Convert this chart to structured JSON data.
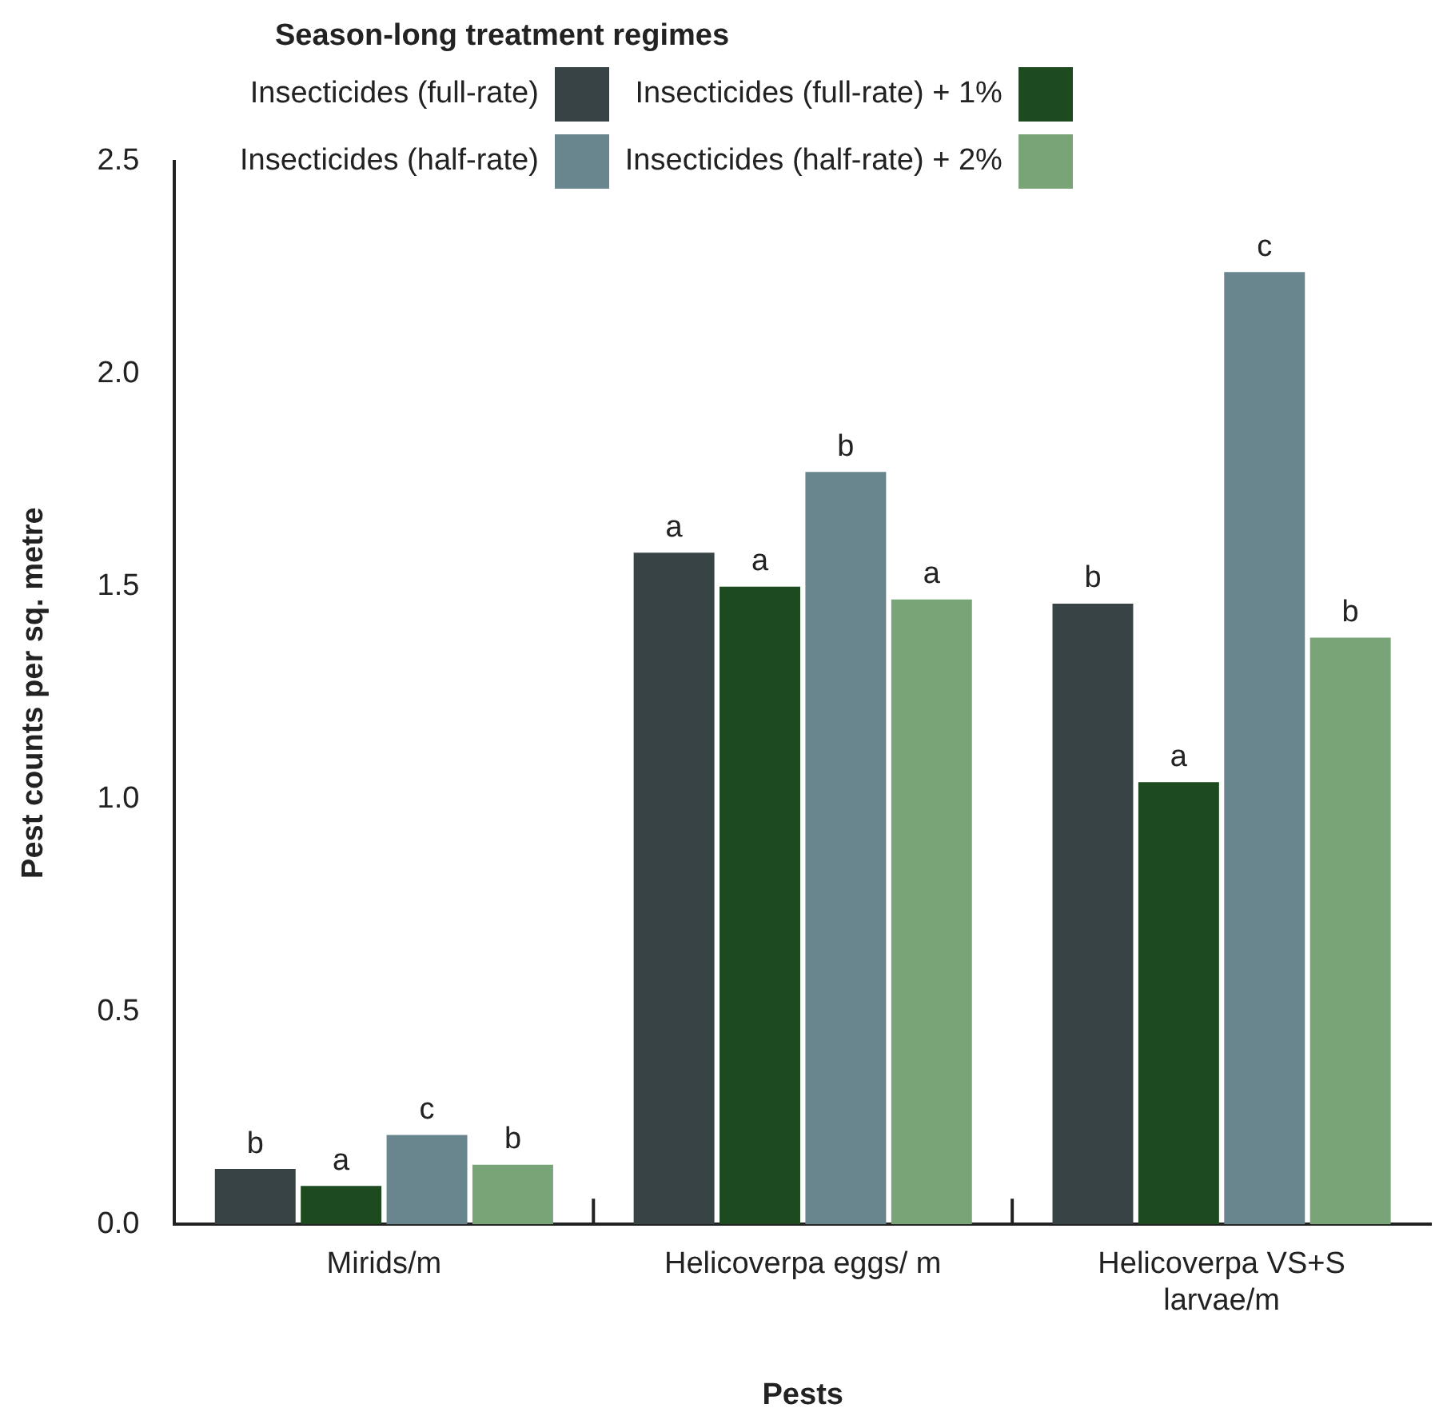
{
  "chart_data": {
    "type": "bar",
    "xlabel": "Pests",
    "ylabel": "Pest counts per sq. metre",
    "legend_title": "Season-long treatment regimes",
    "categories": [
      "Mirids/m",
      "Helicoverpa eggs/ m",
      "Helicoverpa VS+S larvae/m"
    ],
    "series": [
      {
        "name": "Insecticides (full-rate)",
        "color": "#374345",
        "values": [
          0.13,
          1.58,
          1.46
        ],
        "value_labels": [
          "b",
          "a",
          "b"
        ]
      },
      {
        "name": "Insecticides (full-rate) + 1%",
        "color": "#1d4a1f",
        "values": [
          0.09,
          1.5,
          1.04
        ],
        "value_labels": [
          "a",
          "a",
          "a"
        ]
      },
      {
        "name": "Insecticides (half-rate)",
        "color": "#69868f",
        "values": [
          0.21,
          1.77,
          2.24
        ],
        "value_labels": [
          "c",
          "b",
          "c"
        ]
      },
      {
        "name": "Insecticides (half-rate) + 2%",
        "color": "#78a478",
        "values": [
          0.14,
          1.47,
          1.38
        ],
        "value_labels": [
          "b",
          "a",
          "b"
        ]
      }
    ],
    "ylim": [
      0,
      2.5
    ],
    "yticks": [
      {
        "value": 0,
        "label": "0.0"
      },
      {
        "value": 0.5,
        "label": "0.5"
      },
      {
        "value": 1,
        "label": "1.0"
      },
      {
        "value": 1.5,
        "label": "1.5"
      },
      {
        "value": 2,
        "label": "2.0"
      },
      {
        "value": 2.5,
        "label": "2.5"
      }
    ],
    "grid": false,
    "legend": "top"
  }
}
